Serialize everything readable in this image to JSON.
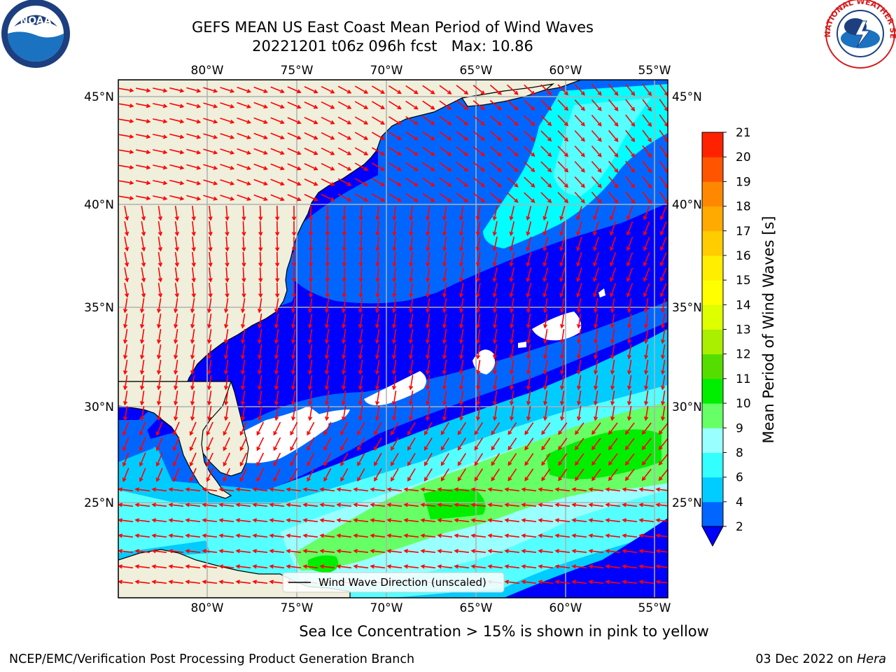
{
  "header": {
    "title_line1": "GEFS MEAN US East Coast Mean Period of Wind Waves",
    "title_line2": "20221201 t06z 096h fcst   Max: 10.86"
  },
  "logos": {
    "left": {
      "name": "noaa-logo",
      "text": "NOAA"
    },
    "right": {
      "name": "nws-logo",
      "text": "NATIONAL WEATHER SERVICE"
    }
  },
  "map": {
    "lon_ticks": [
      "80°W",
      "75°W",
      "70°W",
      "65°W",
      "60°W",
      "55°W"
    ],
    "lat_ticks": [
      "45°N",
      "40°N",
      "35°N",
      "30°N",
      "25°N"
    ],
    "lon_range": [
      -85,
      -54.3
    ],
    "lat_range": [
      20.5,
      45.8
    ],
    "gridlines": true,
    "colors": {
      "land": "#efefdc",
      "no_data": "#ffffff",
      "arrow": "#ff0000",
      "gridline": "#b0b0b0"
    },
    "legend": {
      "label": "Wind Wave Direction (unscaled)",
      "position": "bottom-center"
    }
  },
  "colorbar": {
    "label": "Mean Period of Wind Waves [s]",
    "levels": [
      2,
      4,
      6,
      8,
      9,
      10,
      11,
      12,
      13,
      14,
      15,
      16,
      17,
      18,
      19,
      20,
      21
    ],
    "colors": [
      "#0033ff",
      "#0066ff",
      "#00ccff",
      "#33ffff",
      "#99ffff",
      "#66ff66",
      "#00ee00",
      "#55dd00",
      "#aaee00",
      "#ddff00",
      "#ffff00",
      "#ffee00",
      "#ffcc00",
      "#ffaa00",
      "#ff8800",
      "#ff5500",
      "#ff2200",
      "#ff0000"
    ],
    "under_color": "#0000ff"
  },
  "notes": {
    "ice": "Sea Ice Concentration > 15% is shown in pink to yellow"
  },
  "footer": {
    "left": "NCEP/EMC/Verification Post Processing Product Generation Branch",
    "date": "03 Dec 2022 on",
    "machine": "Hera"
  }
}
